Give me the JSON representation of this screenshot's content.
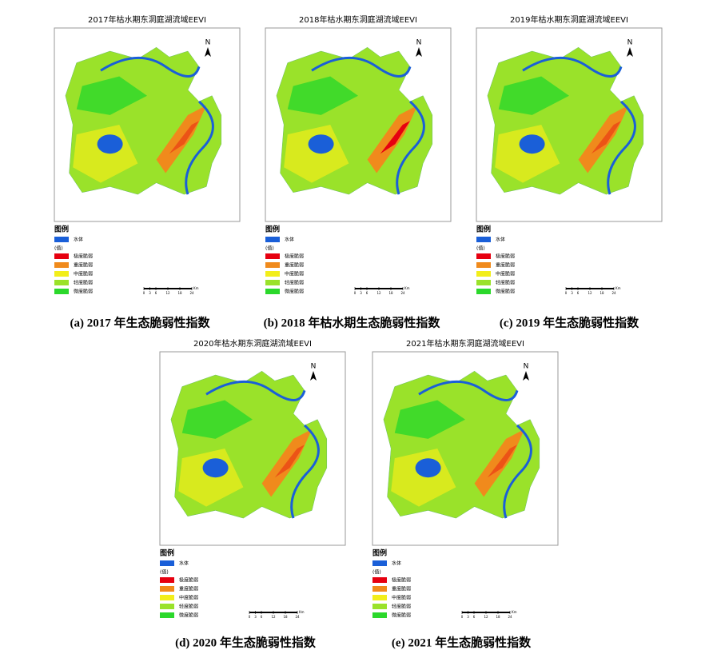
{
  "panels": [
    {
      "map_title": "2017年枯水期东洞庭湖流域EEVI",
      "caption": "(a) 2017 年生态脆弱性指数"
    },
    {
      "map_title": "2018年枯水期东洞庭湖流域EEVI",
      "caption": "(b) 2018 年枯水期生态脆弱性指数"
    },
    {
      "map_title": "2019年枯水期东洞庭湖流域EEVI",
      "caption": "(c) 2019 年生态脆弱性指数"
    },
    {
      "map_title": "2020年枯水期东洞庭湖流域EEVI",
      "caption": "(d) 2020 年生态脆弱性指数"
    },
    {
      "map_title": "2021年枯水期东洞庭湖流域EEVI",
      "caption": "(e) 2021 年生态脆弱性指数"
    }
  ],
  "legend": {
    "title": "图例",
    "water": {
      "label": "水体",
      "color": "#1a5fd8"
    },
    "value_heading": "(值)",
    "classes": [
      {
        "label": "极度脆弱",
        "color": "#e60010"
      },
      {
        "label": "重度脆弱",
        "color": "#f08a1c"
      },
      {
        "label": "中度脆弱",
        "color": "#f2ee1a"
      },
      {
        "label": "轻度脆弱",
        "color": "#9ae22a"
      },
      {
        "label": "微度脆弱",
        "color": "#2bd82b"
      }
    ]
  },
  "north": "N",
  "scale": {
    "ticks": [
      0,
      3,
      6,
      12,
      18,
      24
    ],
    "unit": "Km"
  }
}
